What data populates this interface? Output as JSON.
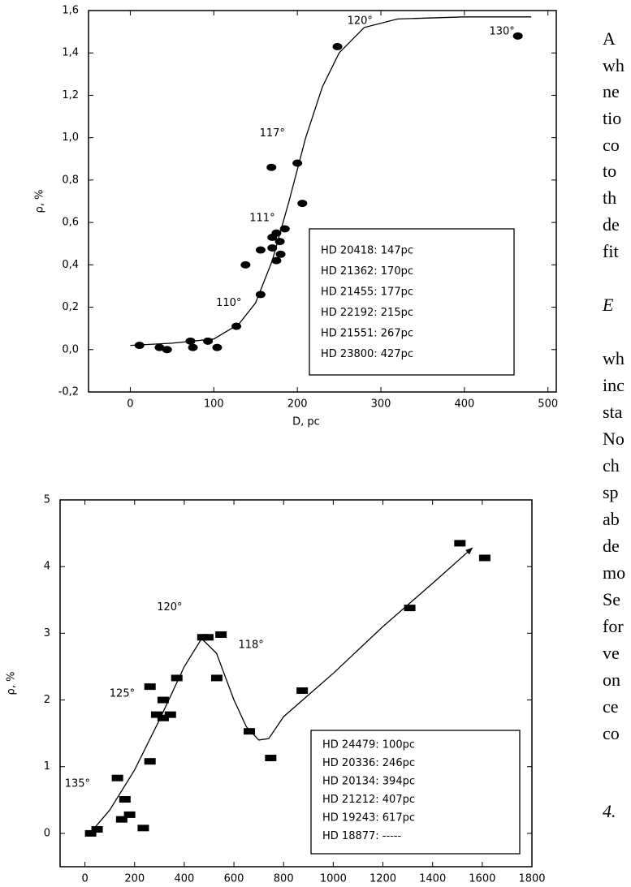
{
  "chart_data": [
    {
      "type": "scatter",
      "marker": "ellipse",
      "color": "#000000",
      "xlabel": "D, pc",
      "ylabel": "ρ, %",
      "xlim": [
        -50,
        510
      ],
      "ylim": [
        -0.2,
        1.6
      ],
      "xticks": [
        0,
        100,
        200,
        300,
        400,
        500
      ],
      "yticks": [
        {
          "value": -0.2,
          "label": "-0,2"
        },
        {
          "value": 0,
          "label": "0,0"
        },
        {
          "value": 0.2,
          "label": "0,2"
        },
        {
          "value": 0.4,
          "label": "0,4"
        },
        {
          "value": 0.6,
          "label": "0,6"
        },
        {
          "value": 0.8,
          "label": "0,8"
        },
        {
          "value": 1.0,
          "label": "1,0"
        },
        {
          "value": 1.2,
          "label": "1,2"
        },
        {
          "value": 1.4,
          "label": "1,4"
        },
        {
          "value": 1.6,
          "label": "1,6"
        }
      ],
      "x": [
        11,
        35,
        44,
        72,
        75,
        93,
        104,
        127,
        138,
        156,
        156,
        169,
        170,
        170,
        175,
        175,
        180,
        179,
        185,
        200,
        206,
        248,
        464
      ],
      "values": [
        0.02,
        0.01,
        0.0,
        0.04,
        0.01,
        0.04,
        0.01,
        0.11,
        0.4,
        0.26,
        0.47,
        0.86,
        0.53,
        0.48,
        0.55,
        0.42,
        0.45,
        0.51,
        0.57,
        0.88,
        0.69,
        1.43,
        1.48
      ],
      "curve": {
        "x": [
          0,
          50,
          100,
          130,
          150,
          170,
          190,
          210,
          230,
          250,
          280,
          320,
          400,
          480
        ],
        "y": [
          0.02,
          0.03,
          0.05,
          0.12,
          0.22,
          0.42,
          0.7,
          1.0,
          1.24,
          1.4,
          1.52,
          1.56,
          1.57,
          1.57
        ]
      },
      "annotations": [
        {
          "text": "110°",
          "x": 118,
          "y": 0.22
        },
        {
          "text": "111°",
          "x": 158,
          "y": 0.62
        },
        {
          "text": "117°",
          "x": 170,
          "y": 1.02
        },
        {
          "text": "120°",
          "x": 275,
          "y": 1.55
        },
        {
          "text": "130°",
          "x": 445,
          "y": 1.5
        }
      ],
      "notes": [
        "HD 20418: 147pc",
        "HD 21362: 170pc",
        "HD 21455: 177pc",
        "HD 22192: 215pc",
        "HD 21551: 267pc",
        "HD 23800: 427pc"
      ]
    },
    {
      "type": "scatter",
      "marker": "rect",
      "color": "#000000",
      "xlabel": "D, pc",
      "ylabel": "ρ, %",
      "xlim": [
        -100,
        1800
      ],
      "ylim": [
        -0.5,
        5
      ],
      "xticks": [
        0,
        200,
        400,
        600,
        800,
        1000,
        1200,
        1400,
        1600,
        1800
      ],
      "yticks": [
        0,
        1,
        2,
        3,
        4,
        5
      ],
      "x": [
        23,
        49,
        131,
        161,
        148,
        180,
        235,
        262,
        262,
        289,
        315,
        315,
        344,
        370,
        475,
        495,
        531,
        548,
        662,
        748,
        875,
        1308,
        1510,
        1610
      ],
      "values": [
        0.0,
        0.06,
        0.83,
        0.51,
        0.21,
        0.28,
        0.08,
        1.08,
        2.2,
        1.78,
        2.0,
        1.73,
        1.78,
        2.33,
        2.94,
        2.94,
        2.33,
        2.98,
        1.53,
        1.13,
        2.14,
        3.38,
        4.35,
        4.13
      ],
      "curve": {
        "x": [
          20,
          100,
          200,
          300,
          400,
          470,
          530,
          600,
          650,
          700,
          740,
          800,
          1000,
          1200,
          1400,
          1560
        ],
        "y": [
          0,
          0.35,
          0.95,
          1.7,
          2.5,
          2.92,
          2.7,
          2.0,
          1.6,
          1.4,
          1.42,
          1.75,
          2.4,
          3.1,
          3.75,
          4.28
        ]
      },
      "annotations": [
        {
          "text": "135°",
          "x": -30,
          "y": 0.74
        },
        {
          "text": "125°",
          "x": 150,
          "y": 2.09
        },
        {
          "text": "120°",
          "x": 341,
          "y": 3.39
        },
        {
          "text": "118°",
          "x": 669,
          "y": 2.82
        }
      ],
      "notes": [
        "HD 24479: 100pc",
        "HD 20336: 246pc",
        "HD 20134: 394pc",
        "HD 21212: 407pc",
        "HD 19243: 617pc",
        "HD 18877: -----"
      ]
    }
  ],
  "side_text": [
    "A",
    "wh",
    "ne",
    "tio",
    "co",
    "to",
    "th",
    "de",
    "fit",
    "E",
    "wh",
    "inc",
    "sta",
    "No",
    "ch",
    "sp",
    "ab",
    "de",
    "mo",
    "Se",
    "for",
    "ve",
    "on",
    "ce",
    "co",
    "4."
  ]
}
